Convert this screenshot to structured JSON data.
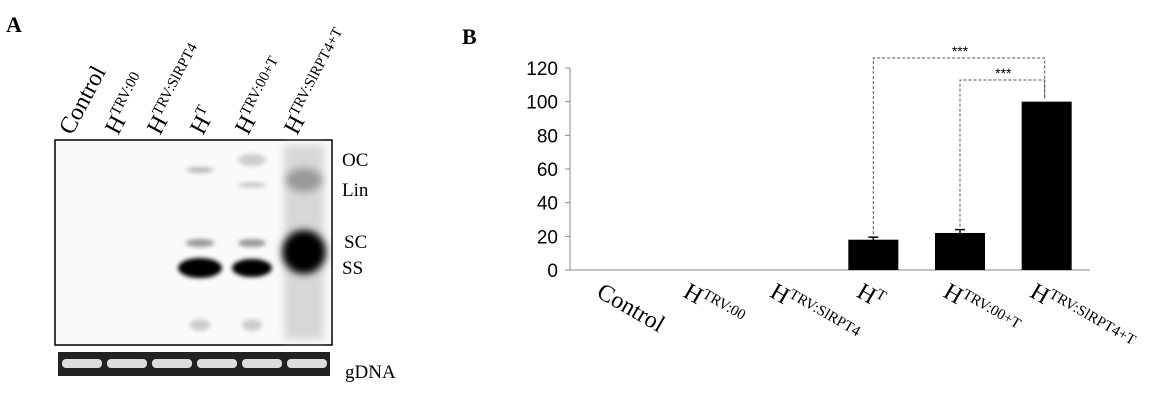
{
  "blot": {
    "panel_label": "A",
    "band_labels": [
      "OC",
      "Lin",
      "SC",
      "SS"
    ],
    "loading_label": "gDNA"
  },
  "chart_data": {
    "type": "bar",
    "panel_label": "B",
    "categories": [
      {
        "main": "Control"
      },
      {
        "main": "H",
        "sup": "TRV:00"
      },
      {
        "main": "H",
        "sup": "TRV:SlRPT4"
      },
      {
        "main": "H",
        "sup": "T"
      },
      {
        "main": "H",
        "sup": "TRV:00+T"
      },
      {
        "main": "H",
        "sup": "TRV:SlRPT4+T"
      }
    ],
    "values": [
      0,
      0,
      0,
      18,
      22,
      100
    ],
    "errors": [
      0,
      0,
      0,
      1.5,
      2,
      0
    ],
    "color": "#000000",
    "ylim": [
      0,
      120
    ],
    "yticks": [
      0,
      20,
      40,
      60,
      80,
      100,
      120
    ],
    "grid": false,
    "annotations": [
      "***",
      "***"
    ]
  }
}
